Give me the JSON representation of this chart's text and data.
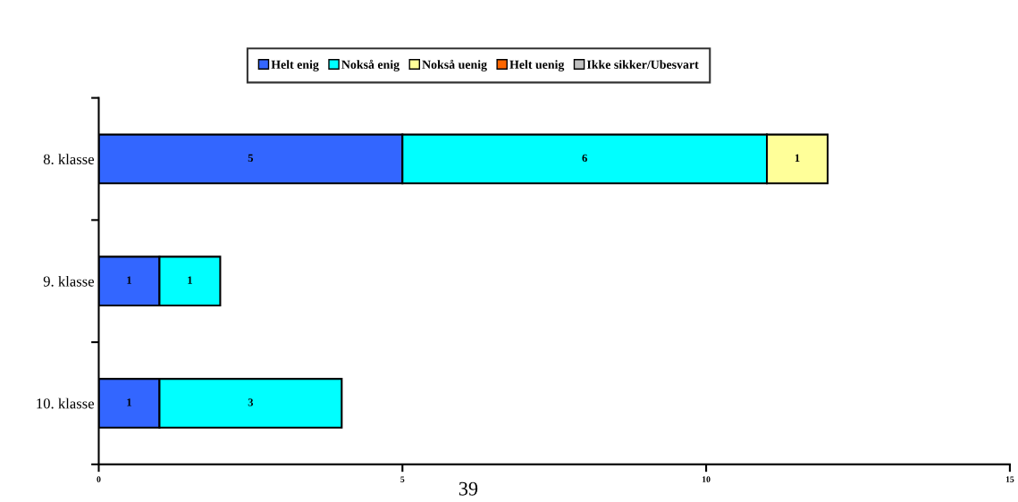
{
  "chart_data": {
    "type": "bar",
    "orientation": "horizontal",
    "stacked": true,
    "categories": [
      "8. klasse",
      "9. klasse",
      "10. klasse"
    ],
    "series": [
      {
        "name": "Helt enig",
        "color": "#3366ff",
        "values": [
          5,
          1,
          1
        ],
        "value_labels": [
          "5",
          "1",
          "1"
        ]
      },
      {
        "name": "Nokså enig",
        "color": "#00ffff",
        "values": [
          6,
          1,
          3
        ],
        "value_labels": [
          "6",
          "1",
          "3"
        ]
      },
      {
        "name": "Nokså uenig",
        "color": "#ffff99",
        "values": [
          1,
          null,
          null
        ],
        "value_labels": [
          "1",
          null,
          null
        ]
      },
      {
        "name": "Helt uenig",
        "color": "#ff6600",
        "values": [
          null,
          null,
          null
        ]
      },
      {
        "name": "Ikke sikker/Ubesvart",
        "color": "#c0c0c0",
        "values": [
          null,
          null,
          null
        ]
      }
    ],
    "xlim": [
      0,
      15
    ],
    "xticks": [
      0,
      5,
      10,
      15
    ],
    "grid": false,
    "legend": "top",
    "annotations": [
      "39"
    ]
  }
}
